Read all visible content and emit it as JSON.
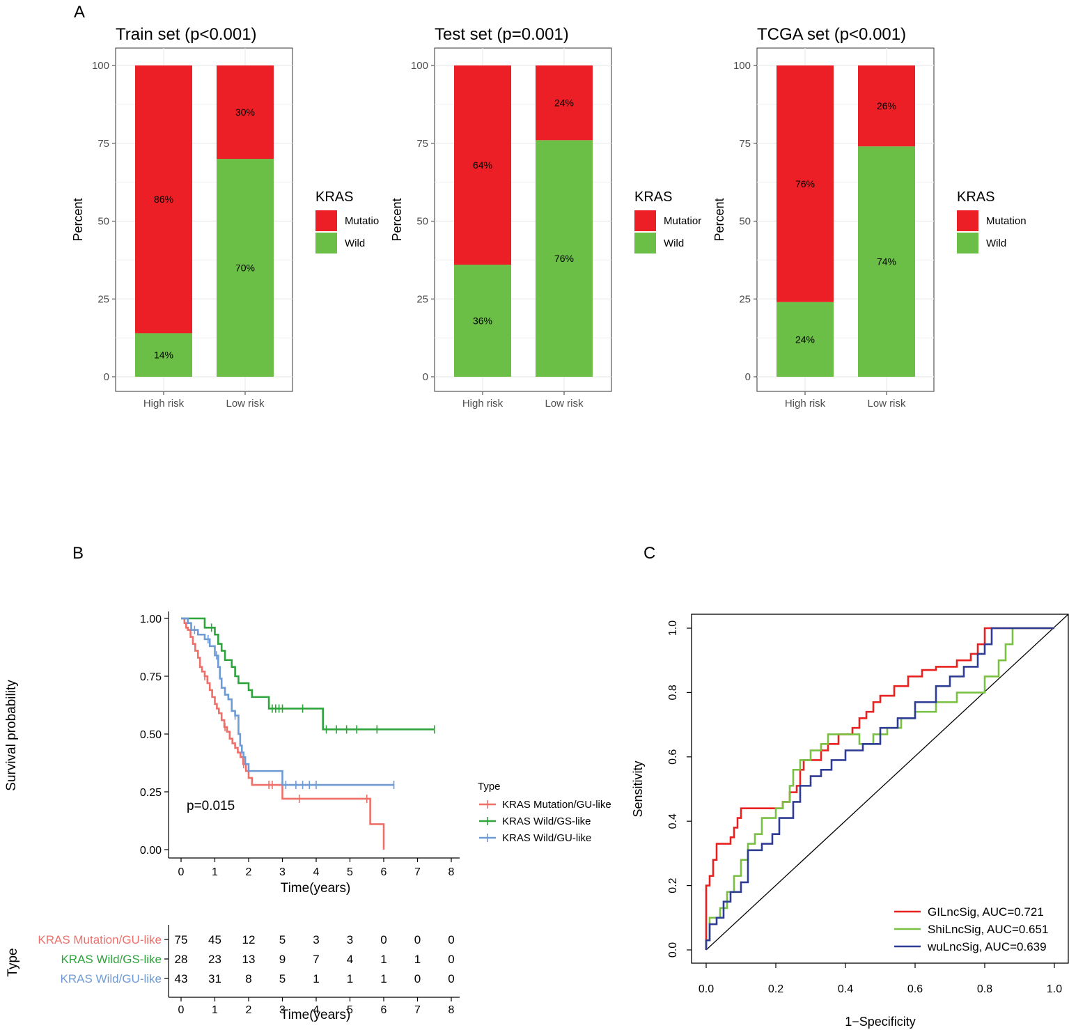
{
  "panel_letters": [
    "A",
    "B",
    "C"
  ],
  "chart_data": [
    {
      "type": "bar",
      "stacked": true,
      "title": "Train set (p<0.001)",
      "ylabel": "Percent",
      "ylim": [
        0,
        100
      ],
      "yticks": [
        0,
        25,
        50,
        75,
        100
      ],
      "categories": [
        "High risk",
        "Low risk"
      ],
      "legend": {
        "title": "KRAS",
        "entries": [
          "Mutatio",
          "Wild"
        ]
      },
      "series": [
        {
          "name": "Wild",
          "color": "#6bbf46",
          "values": [
            14,
            70
          ],
          "labels": [
            "14%",
            "70%"
          ]
        },
        {
          "name": "Mutation",
          "color": "#ec1f26",
          "values": [
            86,
            30
          ],
          "labels": [
            "86%",
            "30%"
          ]
        }
      ]
    },
    {
      "type": "bar",
      "stacked": true,
      "title": "Test set (p=0.001)",
      "ylabel": "Percent",
      "ylim": [
        0,
        100
      ],
      "yticks": [
        0,
        25,
        50,
        75,
        100
      ],
      "categories": [
        "High risk",
        "Low risk"
      ],
      "legend": {
        "title": "KRAS",
        "entries": [
          "Mutatior",
          "Wild"
        ]
      },
      "series": [
        {
          "name": "Wild",
          "color": "#6bbf46",
          "values": [
            36,
            76
          ],
          "labels": [
            "36%",
            "76%"
          ]
        },
        {
          "name": "Mutation",
          "color": "#ec1f26",
          "values": [
            64,
            24
          ],
          "labels": [
            "64%",
            "24%"
          ]
        }
      ]
    },
    {
      "type": "bar",
      "stacked": true,
      "title": "TCGA set (p<0.001)",
      "ylabel": "Percent",
      "ylim": [
        0,
        100
      ],
      "yticks": [
        0,
        25,
        50,
        75,
        100
      ],
      "categories": [
        "High risk",
        "Low risk"
      ],
      "legend": {
        "title": "KRAS",
        "entries": [
          "Mutation",
          "Wild"
        ]
      },
      "series": [
        {
          "name": "Wild",
          "color": "#6bbf46",
          "values": [
            24,
            74
          ],
          "labels": [
            "24%",
            "74%"
          ]
        },
        {
          "name": "Mutation",
          "color": "#ec1f26",
          "values": [
            76,
            26
          ],
          "labels": [
            "76%",
            "26%"
          ]
        }
      ]
    },
    {
      "type": "line",
      "subtype": "kaplan-meier",
      "xlabel": "Time(years)",
      "ylabel": "Survival probability",
      "xlim": [
        0,
        8
      ],
      "ylim": [
        0,
        1
      ],
      "xticks": [
        0,
        1,
        2,
        3,
        4,
        5,
        6,
        7,
        8
      ],
      "yticks": [
        "0.00",
        "0.25",
        "0.50",
        "0.75",
        "1.00"
      ],
      "annotation": "p=0.015",
      "legend_title": "Type",
      "series": [
        {
          "name": "KRAS Mutation/GU-like",
          "color": "#ef6f69",
          "x": [
            0,
            0.1,
            0.15,
            0.2,
            0.28,
            0.35,
            0.42,
            0.5,
            0.56,
            0.62,
            0.7,
            0.78,
            0.85,
            0.92,
            1.0,
            1.06,
            1.12,
            1.2,
            1.28,
            1.36,
            1.44,
            1.52,
            1.6,
            1.68,
            1.76,
            1.84,
            1.92,
            2.0,
            2.1,
            2.9,
            3.0,
            5.5,
            5.6,
            6.0
          ],
          "y": [
            1.0,
            0.98,
            0.96,
            0.95,
            0.92,
            0.89,
            0.86,
            0.83,
            0.79,
            0.77,
            0.75,
            0.72,
            0.69,
            0.66,
            0.63,
            0.61,
            0.59,
            0.56,
            0.53,
            0.51,
            0.48,
            0.46,
            0.44,
            0.42,
            0.4,
            0.37,
            0.34,
            0.31,
            0.28,
            0.28,
            0.22,
            0.22,
            0.11,
            0.0
          ],
          "censors": [
            [
              0.7,
              0.75
            ],
            [
              1.3,
              0.53
            ],
            [
              1.85,
              0.37
            ],
            [
              2.6,
              0.28
            ],
            [
              2.7,
              0.28
            ],
            [
              3.5,
              0.22
            ],
            [
              5.5,
              0.22
            ]
          ]
        },
        {
          "name": "KRAS Wild/GS-like",
          "color": "#2ea43c",
          "x": [
            0,
            0.6,
            0.7,
            0.95,
            1.0,
            1.1,
            1.2,
            1.3,
            1.5,
            1.6,
            1.7,
            1.9,
            2.0,
            2.1,
            2.2,
            2.5,
            2.6,
            4.1,
            4.2,
            7.5
          ],
          "y": [
            1.0,
            1.0,
            0.96,
            0.96,
            0.93,
            0.89,
            0.86,
            0.82,
            0.79,
            0.75,
            0.72,
            0.72,
            0.69,
            0.66,
            0.66,
            0.66,
            0.61,
            0.61,
            0.52,
            0.52
          ],
          "censors": [
            [
              0.9,
              0.96
            ],
            [
              2.7,
              0.61
            ],
            [
              2.8,
              0.61
            ],
            [
              2.9,
              0.61
            ],
            [
              3.0,
              0.61
            ],
            [
              3.6,
              0.61
            ],
            [
              4.3,
              0.52
            ],
            [
              4.6,
              0.52
            ],
            [
              4.9,
              0.52
            ],
            [
              5.2,
              0.52
            ],
            [
              5.8,
              0.52
            ],
            [
              7.5,
              0.52
            ]
          ]
        },
        {
          "name": "KRAS Wild/GU-like",
          "color": "#6e9ad5",
          "x": [
            0,
            0.2,
            0.3,
            0.5,
            0.7,
            0.85,
            1.0,
            1.1,
            1.15,
            1.2,
            1.3,
            1.4,
            1.5,
            1.6,
            1.7,
            1.75,
            1.8,
            1.85,
            1.9,
            2.0,
            2.9,
            3.0,
            6.3
          ],
          "y": [
            1.0,
            0.98,
            0.95,
            0.93,
            0.91,
            0.88,
            0.84,
            0.79,
            0.74,
            0.7,
            0.67,
            0.65,
            0.6,
            0.58,
            0.5,
            0.45,
            0.42,
            0.4,
            0.37,
            0.34,
            0.34,
            0.28,
            0.28
          ],
          "censors": [
            [
              0.4,
              0.95
            ],
            [
              0.8,
              0.91
            ],
            [
              1.05,
              0.84
            ],
            [
              1.6,
              0.58
            ],
            [
              3.1,
              0.28
            ],
            [
              3.4,
              0.28
            ],
            [
              3.6,
              0.28
            ],
            [
              3.8,
              0.28
            ],
            [
              4.0,
              0.28
            ],
            [
              6.3,
              0.28
            ]
          ]
        }
      ]
    },
    {
      "type": "table",
      "subtype": "risk-table",
      "ylabel": "Type",
      "xlabel": "Time(years)",
      "xticks": [
        0,
        1,
        2,
        3,
        4,
        5,
        6,
        7,
        8
      ],
      "rows": [
        {
          "name": "KRAS Mutation/GU-like",
          "color": "#ef6f69",
          "values": [
            75,
            45,
            12,
            5,
            3,
            3,
            0,
            0,
            0
          ]
        },
        {
          "name": "KRAS Wild/GS-like",
          "color": "#2ea43c",
          "values": [
            28,
            23,
            13,
            9,
            7,
            4,
            1,
            1,
            0
          ]
        },
        {
          "name": "KRAS Wild/GU-like",
          "color": "#6e9ad5",
          "values": [
            43,
            31,
            8,
            5,
            1,
            1,
            1,
            0,
            0
          ]
        }
      ]
    },
    {
      "type": "line",
      "subtype": "roc",
      "xlabel": "1−Specificity",
      "ylabel": "Sensitivity",
      "xlim": [
        0,
        1
      ],
      "ylim": [
        0,
        1
      ],
      "xticks": [
        "0.0",
        "0.2",
        "0.4",
        "0.6",
        "0.8",
        "1.0"
      ],
      "yticks": [
        "0.0",
        "0.2",
        "0.4",
        "0.6",
        "0.8",
        "1.0"
      ],
      "series": [
        {
          "name": "GILncSig, AUC=0.721",
          "color": "#e8201f",
          "x": [
            0,
            0,
            0.01,
            0.01,
            0.02,
            0.02,
            0.03,
            0.03,
            0.07,
            0.07,
            0.08,
            0.08,
            0.09,
            0.09,
            0.1,
            0.1,
            0.22,
            0.22,
            0.24,
            0.24,
            0.26,
            0.26,
            0.27,
            0.27,
            0.28,
            0.28,
            0.33,
            0.33,
            0.35,
            0.35,
            0.38,
            0.38,
            0.42,
            0.42,
            0.44,
            0.44,
            0.46,
            0.46,
            0.48,
            0.48,
            0.5,
            0.5,
            0.54,
            0.54,
            0.58,
            0.58,
            0.62,
            0.62,
            0.66,
            0.66,
            0.72,
            0.72,
            0.76,
            0.76,
            0.78,
            0.78,
            0.8,
            0.8,
            1.0
          ],
          "y": [
            0,
            0.2,
            0.2,
            0.23,
            0.23,
            0.28,
            0.28,
            0.33,
            0.33,
            0.35,
            0.35,
            0.38,
            0.38,
            0.41,
            0.41,
            0.44,
            0.44,
            0.46,
            0.46,
            0.49,
            0.49,
            0.51,
            0.51,
            0.56,
            0.56,
            0.59,
            0.59,
            0.62,
            0.62,
            0.64,
            0.64,
            0.67,
            0.67,
            0.69,
            0.69,
            0.72,
            0.72,
            0.74,
            0.74,
            0.77,
            0.77,
            0.79,
            0.79,
            0.82,
            0.82,
            0.85,
            0.85,
            0.87,
            0.87,
            0.88,
            0.88,
            0.9,
            0.9,
            0.92,
            0.92,
            0.95,
            0.95,
            1.0,
            1.0
          ]
        },
        {
          "name": "ShiLncSig, AUC=0.651",
          "color": "#7ac143",
          "x": [
            0,
            0,
            0.01,
            0.01,
            0.04,
            0.04,
            0.06,
            0.06,
            0.08,
            0.08,
            0.1,
            0.1,
            0.12,
            0.12,
            0.14,
            0.14,
            0.16,
            0.16,
            0.2,
            0.2,
            0.22,
            0.22,
            0.24,
            0.24,
            0.25,
            0.25,
            0.27,
            0.27,
            0.3,
            0.3,
            0.33,
            0.33,
            0.35,
            0.35,
            0.44,
            0.44,
            0.48,
            0.48,
            0.52,
            0.52,
            0.56,
            0.56,
            0.6,
            0.6,
            0.66,
            0.66,
            0.72,
            0.72,
            0.8,
            0.8,
            0.84,
            0.84,
            0.86,
            0.86,
            0.88,
            0.88,
            1.0
          ],
          "y": [
            0,
            0.03,
            0.03,
            0.1,
            0.1,
            0.13,
            0.13,
            0.18,
            0.18,
            0.23,
            0.23,
            0.28,
            0.28,
            0.33,
            0.33,
            0.36,
            0.36,
            0.41,
            0.41,
            0.44,
            0.44,
            0.46,
            0.46,
            0.51,
            0.51,
            0.56,
            0.56,
            0.59,
            0.59,
            0.62,
            0.62,
            0.64,
            0.64,
            0.67,
            0.67,
            0.64,
            0.64,
            0.67,
            0.67,
            0.69,
            0.69,
            0.72,
            0.72,
            0.74,
            0.74,
            0.77,
            0.77,
            0.8,
            0.8,
            0.85,
            0.85,
            0.9,
            0.9,
            0.95,
            0.95,
            1.0,
            1.0
          ]
        },
        {
          "name": "wuLncSig, AUC=0.639",
          "color": "#2e3c94",
          "x": [
            0,
            0,
            0.01,
            0.01,
            0.03,
            0.03,
            0.05,
            0.05,
            0.07,
            0.07,
            0.1,
            0.1,
            0.12,
            0.12,
            0.16,
            0.16,
            0.19,
            0.19,
            0.21,
            0.21,
            0.25,
            0.25,
            0.27,
            0.27,
            0.3,
            0.3,
            0.33,
            0.33,
            0.36,
            0.36,
            0.4,
            0.4,
            0.45,
            0.45,
            0.5,
            0.5,
            0.55,
            0.55,
            0.6,
            0.6,
            0.66,
            0.66,
            0.7,
            0.7,
            0.74,
            0.74,
            0.78,
            0.78,
            0.8,
            0.8,
            0.82,
            0.82,
            1.0
          ],
          "y": [
            0,
            0.03,
            0.03,
            0.08,
            0.08,
            0.1,
            0.1,
            0.15,
            0.15,
            0.18,
            0.18,
            0.21,
            0.21,
            0.31,
            0.31,
            0.33,
            0.33,
            0.36,
            0.36,
            0.41,
            0.41,
            0.46,
            0.46,
            0.51,
            0.51,
            0.54,
            0.54,
            0.56,
            0.56,
            0.59,
            0.59,
            0.62,
            0.62,
            0.64,
            0.64,
            0.69,
            0.69,
            0.72,
            0.72,
            0.77,
            0.77,
            0.82,
            0.82,
            0.85,
            0.85,
            0.88,
            0.88,
            0.92,
            0.92,
            0.95,
            0.95,
            1.0,
            1.0
          ]
        }
      ]
    }
  ]
}
